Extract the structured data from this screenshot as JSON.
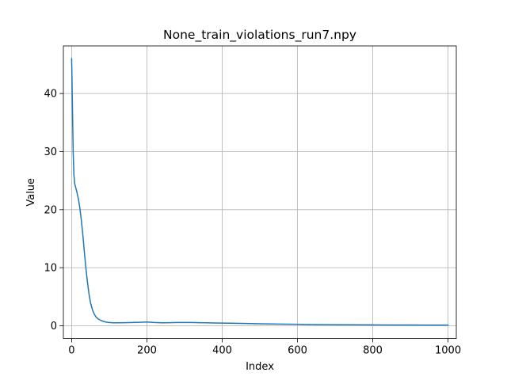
{
  "chart_data": {
    "type": "line",
    "title": "None_train_violations_run7.npy",
    "xlabel": "Index",
    "ylabel": "Value",
    "xlim": [
      -22,
      1022
    ],
    "ylim": [
      -2.2,
      48.2
    ],
    "xticks": [
      0,
      200,
      400,
      600,
      800,
      1000
    ],
    "xtick_labels": [
      "0",
      "200",
      "400",
      "600",
      "800",
      "1000"
    ],
    "yticks": [
      0,
      10,
      20,
      30,
      40
    ],
    "ytick_labels": [
      "0",
      "10",
      "20",
      "30",
      "40"
    ],
    "grid": true,
    "legend": "none",
    "series": [
      {
        "color": "#1f77b4",
        "x": [
          0,
          2,
          4,
          6,
          8,
          10,
          14,
          18,
          22,
          26,
          30,
          34,
          38,
          42,
          46,
          50,
          55,
          60,
          65,
          70,
          75,
          80,
          90,
          100,
          110,
          120,
          140,
          160,
          180,
          200,
          220,
          240,
          260,
          280,
          300,
          320,
          340,
          360,
          380,
          400,
          450,
          500,
          550,
          600,
          650,
          700,
          750,
          800,
          850,
          900,
          950,
          1000
        ],
        "y": [
          46.0,
          38.0,
          30.0,
          26.0,
          24.5,
          24.0,
          23.0,
          21.8,
          20.2,
          18.0,
          15.5,
          12.5,
          9.8,
          7.5,
          5.5,
          4.0,
          2.8,
          2.0,
          1.5,
          1.2,
          1.0,
          0.85,
          0.65,
          0.55,
          0.5,
          0.5,
          0.52,
          0.55,
          0.6,
          0.65,
          0.55,
          0.5,
          0.52,
          0.55,
          0.55,
          0.55,
          0.52,
          0.5,
          0.48,
          0.45,
          0.4,
          0.33,
          0.28,
          0.25,
          0.2,
          0.18,
          0.16,
          0.15,
          0.14,
          0.13,
          0.12,
          0.12
        ]
      }
    ]
  }
}
